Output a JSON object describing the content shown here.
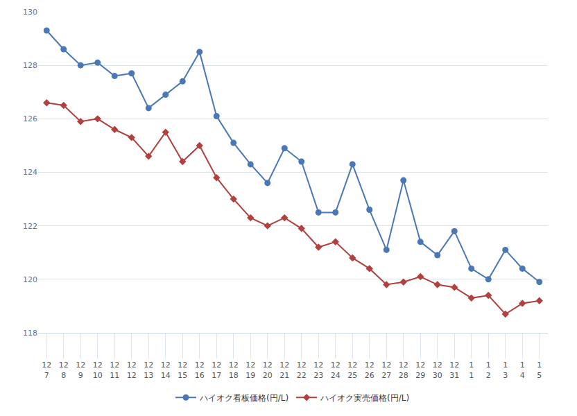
{
  "chart_data": {
    "type": "line",
    "categories": [
      "12\n7",
      "12\n8",
      "12\n9",
      "12\n10",
      "12\n11",
      "12\n12",
      "12\n13",
      "12\n14",
      "12\n15",
      "12\n16",
      "12\n17",
      "12\n18",
      "12\n19",
      "12\n20",
      "12\n21",
      "12\n22",
      "12\n23",
      "12\n24",
      "12\n25",
      "12\n26",
      "12\n27",
      "12\n28",
      "12\n29",
      "12\n30",
      "12\n31",
      "1\n1",
      "1\n2",
      "1\n3",
      "1\n4",
      "1\n5"
    ],
    "series": [
      {
        "name": "ハイオク看板価格(円/L)",
        "color": "#4a78b5",
        "marker": "circle",
        "values": [
          129.3,
          128.6,
          128.0,
          128.1,
          127.6,
          127.7,
          126.4,
          126.9,
          127.4,
          128.5,
          126.1,
          125.1,
          124.3,
          123.6,
          124.9,
          124.4,
          122.5,
          122.5,
          124.3,
          122.6,
          121.1,
          123.7,
          121.4,
          120.9,
          121.8,
          120.4,
          120.0,
          121.1,
          120.4,
          119.9
        ]
      },
      {
        "name": "ハイオク実売価格(円/L)",
        "color": "#b0413e",
        "marker": "diamond",
        "values": [
          126.6,
          126.5,
          125.9,
          126.0,
          125.6,
          125.3,
          124.6,
          125.5,
          124.4,
          125.0,
          123.8,
          123.0,
          122.3,
          122.0,
          122.3,
          121.9,
          121.2,
          121.4,
          120.8,
          120.4,
          119.8,
          119.9,
          120.1,
          119.8,
          119.7,
          119.3,
          119.4,
          118.7,
          119.1,
          119.2
        ]
      }
    ],
    "ylim": [
      118,
      130
    ],
    "yticks": [
      118,
      120,
      122,
      124,
      126,
      128,
      130
    ],
    "grid": true,
    "legend": "bottom"
  }
}
